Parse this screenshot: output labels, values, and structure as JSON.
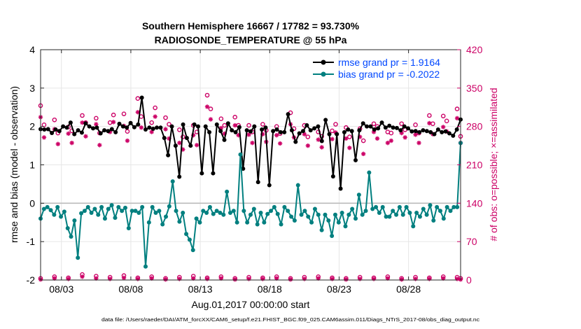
{
  "chart_data": {
    "type": "line",
    "title": "Southern Hemisphere 16667 / 17782 = 93.730%",
    "subtitle": "RADIOSONDE_TEMPERATURE @ 55 hPa",
    "xlabel": "Aug.01,2017 00:00:00 start",
    "ylabel": "rmse and bias (model - observation)",
    "y2label": "# of obs: o=possible; ×=assimilated",
    "footnote": "data file: /Users/raeder/DAI/ATM_forcXX/CAM6_setup/f.e21.FHIST_BGC.f09_025.CAM6assim.011/Diags_NTrS_2017-08/obs_diag_output.nc",
    "xlim": [
      1.5,
      31.75
    ],
    "ylim": [
      -2,
      4
    ],
    "y2lim": [
      0,
      420
    ],
    "xtick_values": [
      3,
      8,
      13,
      18,
      23,
      28
    ],
    "xtick_labels": [
      "08/03",
      "08/08",
      "08/13",
      "08/18",
      "08/23",
      "08/28"
    ],
    "ytick_labels": [
      "-2",
      "-1",
      "0",
      "1",
      "2",
      "3",
      "4"
    ],
    "y2tick_labels": [
      "0",
      "70",
      "140",
      "210",
      "280",
      "350",
      "420"
    ],
    "grid": true,
    "legend_position": "top-right",
    "colors": {
      "rmse": "#000000",
      "bias": "#007f7f",
      "obs": "#cc0066",
      "zero_line": "#bbbbbb",
      "axis_right": "#cc0066",
      "legend_text": "#0047ff"
    },
    "series": [
      {
        "name": "rmse grand pr = 1.9164",
        "key": "rmse",
        "axis": "left",
        "values": [
          1.93,
          1.92,
          1.93,
          1.83,
          1.92,
          1.88,
          2.0,
          1.97,
          2.1,
          1.8,
          1.9,
          1.84,
          2.08,
          2.0,
          1.95,
          1.97,
          1.82,
          1.9,
          1.88,
          1.93,
          1.85,
          2.07,
          2.0,
          1.97,
          2.09,
          1.98,
          2.05,
          2.75,
          1.92,
          1.97,
          1.94,
          1.97,
          1.97,
          1.7,
          1.25,
          2.0,
          1.5,
          0.69,
          2.05,
          1.7,
          1.5,
          2.05,
          2.0,
          0.78,
          2.0,
          1.85,
          0.78,
          2.05,
          1.88,
          1.65,
          2.08,
          1.9,
          1.85,
          1.98,
          0.9,
          1.9,
          1.87,
          2.0,
          0.55,
          1.92,
          1.97,
          0.47,
          1.88,
          1.92,
          1.85,
          1.85,
          2.32,
          1.9,
          1.6,
          1.82,
          1.88,
          2.03,
          1.9,
          1.95,
          2.0,
          1.62,
          2.17,
          1.8,
          0.7,
          1.8,
          0.38,
          1.85,
          1.92,
          1.88,
          1.12,
          1.9,
          2.08,
          2.0,
          2.0,
          1.92,
          1.95,
          2.1,
          1.97,
          2.02,
          1.97,
          1.96,
          1.9,
          2.0,
          1.95,
          1.87,
          1.88,
          1.85,
          1.9,
          1.88,
          1.85,
          1.8,
          1.92,
          1.85,
          1.87,
          1.82,
          1.76,
          1.92,
          2.18
        ]
      },
      {
        "name": "bias grand pr = -0.2022",
        "key": "bias",
        "axis": "left",
        "values": [
          -0.4,
          -0.15,
          -0.1,
          -0.18,
          -0.3,
          -0.1,
          -0.35,
          -0.22,
          -0.65,
          -0.87,
          -0.45,
          -1.42,
          -0.26,
          -0.2,
          -0.1,
          -0.25,
          -0.15,
          -0.3,
          -0.1,
          -0.4,
          -0.15,
          -0.05,
          -0.38,
          -0.1,
          -0.2,
          -0.12,
          -0.65,
          -0.2,
          -0.2,
          -0.25,
          -0.1,
          -1.65,
          -0.5,
          -0.1,
          -0.25,
          -0.2,
          -0.55,
          -0.35,
          -0.08,
          0.57,
          -0.2,
          -0.48,
          -0.25,
          -0.8,
          -0.95,
          -1.22,
          -0.4,
          -0.5,
          -0.2,
          -0.25,
          -0.1,
          -0.28,
          -0.2,
          -0.25,
          -0.3,
          0.3,
          -0.25,
          -0.2,
          -0.5,
          1.27,
          -0.2,
          -0.5,
          -0.3,
          -0.15,
          -0.55,
          -0.25,
          -0.5,
          -0.28,
          -0.2,
          -0.1,
          -0.28,
          -0.55,
          -0.1,
          -0.2,
          -0.35,
          -0.45,
          0.47,
          -0.3,
          -0.2,
          -0.35,
          -0.5,
          -0.15,
          -0.3,
          -0.7,
          -0.3,
          -0.45,
          -0.85,
          -0.3,
          -0.5,
          -0.25,
          -0.6,
          -0.3,
          -0.15,
          -0.4,
          0.22,
          -0.3,
          -0.2,
          0.8,
          -0.15,
          -0.1,
          -0.25,
          -0.1,
          -0.35,
          -0.35,
          -0.2,
          -0.3,
          -0.1,
          -0.3,
          -0.1,
          -0.25,
          -0.6,
          -0.25,
          -0.35,
          -0.15,
          -0.3,
          -0.05,
          -0.45,
          -0.1,
          -0.2,
          -0.4,
          -0.1,
          -0.2,
          -0.1,
          -0.1,
          1.57
        ]
      }
    ],
    "obs_possible": [
      [
        1.5,
        318
      ],
      [
        1.75,
        283
      ],
      [
        2.5,
        292
      ],
      [
        2.75,
        268
      ],
      [
        3.5,
        279
      ],
      [
        3.75,
        272
      ],
      [
        4.5,
        300
      ],
      [
        4.75,
        287
      ],
      [
        5.5,
        295
      ],
      [
        5.75,
        268
      ],
      [
        6.5,
        287
      ],
      [
        6.75,
        301
      ],
      [
        7.5,
        303
      ],
      [
        7.75,
        271
      ],
      [
        8.5,
        331
      ],
      [
        8.75,
        298
      ],
      [
        9.5,
        287
      ],
      [
        9.75,
        314
      ],
      [
        10.5,
        296
      ],
      [
        10.75,
        284
      ],
      [
        11.5,
        274
      ],
      [
        11.75,
        261
      ],
      [
        12.5,
        282
      ],
      [
        12.75,
        270
      ],
      [
        13.5,
        337
      ],
      [
        13.75,
        312
      ],
      [
        14.5,
        294
      ],
      [
        14.75,
        282
      ],
      [
        15.5,
        297
      ],
      [
        15.75,
        282
      ],
      [
        16.5,
        282
      ],
      [
        16.75,
        270
      ],
      [
        17.5,
        284
      ],
      [
        17.75,
        273
      ],
      [
        18.5,
        280
      ],
      [
        18.75,
        267
      ],
      [
        19.5,
        305
      ],
      [
        19.75,
        276
      ],
      [
        20.5,
        282
      ],
      [
        20.75,
        261
      ],
      [
        21.5,
        270
      ],
      [
        21.75,
        262
      ],
      [
        22.5,
        272
      ],
      [
        22.75,
        284
      ],
      [
        23.5,
        278
      ],
      [
        23.75,
        261
      ],
      [
        24.5,
        276
      ],
      [
        24.75,
        254
      ],
      [
        25.5,
        285
      ],
      [
        25.75,
        280
      ],
      [
        26.5,
        270
      ],
      [
        26.75,
        268
      ],
      [
        27.5,
        285
      ],
      [
        27.75,
        274
      ],
      [
        28.5,
        283
      ],
      [
        28.75,
        268
      ],
      [
        29.5,
        300
      ],
      [
        29.75,
        285
      ],
      [
        30.5,
        299
      ],
      [
        30.75,
        290
      ],
      [
        31.5,
        312
      ],
      [
        31.75,
        262
      ]
    ],
    "obs_assimilated": [
      [
        1.5,
        297
      ],
      [
        1.75,
        260
      ],
      [
        2.5,
        275
      ],
      [
        2.75,
        248
      ],
      [
        3.5,
        267
      ],
      [
        3.75,
        250
      ],
      [
        4.5,
        287
      ],
      [
        4.75,
        262
      ],
      [
        5.5,
        284
      ],
      [
        5.75,
        246
      ],
      [
        6.5,
        270
      ],
      [
        6.75,
        288
      ],
      [
        7.5,
        281
      ],
      [
        7.75,
        254
      ],
      [
        8.5,
        306
      ],
      [
        8.75,
        278
      ],
      [
        9.5,
        270
      ],
      [
        9.75,
        298
      ],
      [
        10.5,
        275
      ],
      [
        10.75,
        258
      ],
      [
        11.5,
        250
      ],
      [
        11.75,
        238
      ],
      [
        12.5,
        264
      ],
      [
        12.75,
        246
      ],
      [
        13.5,
        316
      ],
      [
        13.75,
        293
      ],
      [
        14.5,
        277
      ],
      [
        14.75,
        267
      ],
      [
        15.5,
        282
      ],
      [
        15.75,
        264
      ],
      [
        16.5,
        265
      ],
      [
        16.75,
        250
      ],
      [
        17.5,
        266
      ],
      [
        17.75,
        252
      ],
      [
        18.5,
        264
      ],
      [
        18.75,
        249
      ],
      [
        19.5,
        284
      ],
      [
        19.75,
        260
      ],
      [
        20.5,
        266
      ],
      [
        20.75,
        245
      ],
      [
        21.5,
        256
      ],
      [
        21.75,
        242
      ],
      [
        22.5,
        257
      ],
      [
        22.75,
        269
      ],
      [
        23.5,
        258
      ],
      [
        23.75,
        241
      ],
      [
        24.5,
        261
      ],
      [
        24.75,
        230
      ],
      [
        25.5,
        270
      ],
      [
        25.75,
        258
      ],
      [
        26.5,
        250
      ],
      [
        26.75,
        254
      ],
      [
        27.5,
        268
      ],
      [
        27.75,
        260
      ],
      [
        28.5,
        265
      ],
      [
        28.75,
        250
      ],
      [
        29.5,
        286
      ],
      [
        29.75,
        266
      ],
      [
        30.5,
        279
      ],
      [
        30.75,
        271
      ],
      [
        31.5,
        295
      ],
      [
        31.75,
        250
      ]
    ],
    "obs_possible_bottom": [
      [
        1.5,
        3
      ],
      [
        2.5,
        6
      ],
      [
        3.5,
        4
      ],
      [
        4.5,
        10
      ],
      [
        5.5,
        7
      ],
      [
        6.5,
        5
      ],
      [
        7.5,
        8
      ],
      [
        8.5,
        4
      ],
      [
        9.5,
        6
      ],
      [
        10.5,
        3
      ],
      [
        11.5,
        5
      ],
      [
        12.5,
        7
      ],
      [
        13.5,
        4
      ],
      [
        14.5,
        6
      ],
      [
        15.5,
        3
      ],
      [
        16.5,
        5
      ],
      [
        17.5,
        4
      ],
      [
        18.5,
        6
      ],
      [
        19.5,
        3
      ],
      [
        20.5,
        5
      ],
      [
        21.5,
        6
      ],
      [
        22.5,
        4
      ],
      [
        23.5,
        3
      ],
      [
        24.5,
        5
      ],
      [
        25.5,
        4
      ],
      [
        26.5,
        6
      ],
      [
        27.5,
        3
      ],
      [
        28.5,
        5
      ],
      [
        29.5,
        4
      ],
      [
        30.5,
        6
      ],
      [
        31.5,
        5
      ],
      [
        31.75,
        3
      ]
    ],
    "obs_assimilated_bottom": [
      [
        1.5,
        1
      ],
      [
        2.5,
        3
      ],
      [
        3.5,
        2
      ],
      [
        4.5,
        6
      ],
      [
        5.5,
        3
      ],
      [
        6.5,
        2
      ],
      [
        7.5,
        4
      ],
      [
        8.5,
        2
      ],
      [
        9.5,
        3
      ],
      [
        10.5,
        1
      ],
      [
        11.5,
        2
      ],
      [
        12.5,
        3
      ],
      [
        13.5,
        2
      ],
      [
        14.5,
        3
      ],
      [
        15.5,
        1
      ],
      [
        16.5,
        2
      ],
      [
        17.5,
        2
      ],
      [
        18.5,
        3
      ],
      [
        19.5,
        1
      ],
      [
        20.5,
        2
      ],
      [
        21.5,
        3
      ],
      [
        22.5,
        2
      ],
      [
        23.5,
        1
      ],
      [
        24.5,
        2
      ],
      [
        25.5,
        2
      ],
      [
        26.5,
        3
      ],
      [
        27.5,
        1
      ],
      [
        28.5,
        2
      ],
      [
        29.5,
        2
      ],
      [
        30.5,
        3
      ],
      [
        31.5,
        2
      ],
      [
        31.75,
        1
      ]
    ]
  }
}
